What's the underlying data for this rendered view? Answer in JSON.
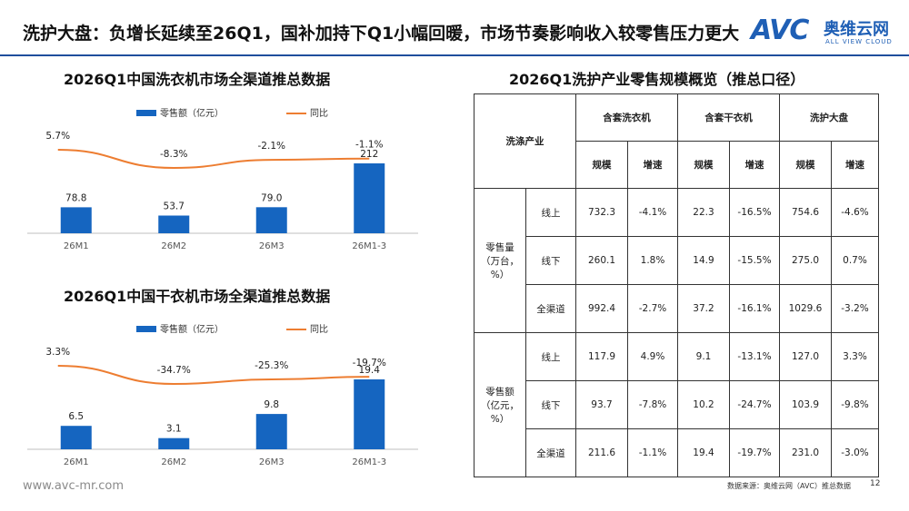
{
  "header": {
    "title": "洗护大盘：负增长延续至26Q1，国补加持下Q1小幅回暖，市场节奏影响收入较零售压力更大",
    "logo_avc": "AVC",
    "logo_cn": "奥维云网",
    "logo_en": "ALL VIEW CLOUD"
  },
  "chart_data": [
    {
      "type": "bar",
      "title": "2026Q1中国洗衣机市场全渠道推总数据",
      "categories": [
        "26M1",
        "26M2",
        "26M3",
        "26M1-3"
      ],
      "series": [
        {
          "name": "零售额（亿元）",
          "type": "bar",
          "values": [
            78.8,
            53.7,
            79.0,
            212
          ],
          "labels": [
            "78.8",
            "53.7",
            "79.0",
            "212"
          ],
          "color": "#1565c0"
        },
        {
          "name": "同比",
          "type": "line",
          "values": [
            5.7,
            -8.3,
            -2.1,
            -1.1
          ],
          "labels": [
            "5.7%",
            "-8.3%",
            "-2.1%",
            "-1.1%"
          ],
          "color": "#ed7d31"
        }
      ]
    },
    {
      "type": "bar",
      "title": "2026Q1中国干衣机市场全渠道推总数据",
      "categories": [
        "26M1",
        "26M2",
        "26M3",
        "26M1-3"
      ],
      "series": [
        {
          "name": "零售额（亿元）",
          "type": "bar",
          "values": [
            6.5,
            3.1,
            9.8,
            19.4
          ],
          "labels": [
            "6.5",
            "3.1",
            "9.8",
            "19.4"
          ],
          "color": "#1565c0"
        },
        {
          "name": "同比",
          "type": "line",
          "values": [
            3.3,
            -34.7,
            -25.3,
            -19.7
          ],
          "labels": [
            "3.3%",
            "-34.7%",
            "-25.3%",
            "-19.7%"
          ],
          "color": "#ed7d31"
        }
      ]
    }
  ],
  "table": {
    "title": "2026Q1洗护产业零售规模概览（推总口径）",
    "corner": "洗涤产业",
    "groups": [
      "含套洗衣机",
      "含套干衣机",
      "洗护大盘"
    ],
    "sub_headers": [
      "规模",
      "增速",
      "规模",
      "增速",
      "规模",
      "增速"
    ],
    "sections": [
      {
        "label_line1": "零售量",
        "label_line2": "（万台，%）",
        "rows": [
          {
            "channel": "线上",
            "values": [
              "732.3",
              "-4.1%",
              "22.3",
              "-16.5%",
              "754.6",
              "-4.6%"
            ]
          },
          {
            "channel": "线下",
            "values": [
              "260.1",
              "1.8%",
              "14.9",
              "-15.5%",
              "275.0",
              "0.7%"
            ]
          },
          {
            "channel": "全渠道",
            "values": [
              "992.4",
              "-2.7%",
              "37.2",
              "-16.1%",
              "1029.6",
              "-3.2%"
            ]
          }
        ]
      },
      {
        "label_line1": "零售额",
        "label_line2": "（亿元，%）",
        "rows": [
          {
            "channel": "线上",
            "values": [
              "117.9",
              "4.9%",
              "9.1",
              "-13.1%",
              "127.0",
              "3.3%"
            ]
          },
          {
            "channel": "线下",
            "values": [
              "93.7",
              "-7.8%",
              "10.2",
              "-24.7%",
              "103.9",
              "-9.8%"
            ]
          },
          {
            "channel": "全渠道",
            "values": [
              "211.6",
              "-1.1%",
              "19.4",
              "-19.7%",
              "231.0",
              "-3.0%"
            ]
          }
        ]
      }
    ]
  },
  "footer": {
    "url": "www.avc-mr.com",
    "source": "数据来源：奥维云网（AVC）推总数据",
    "page": "12"
  }
}
